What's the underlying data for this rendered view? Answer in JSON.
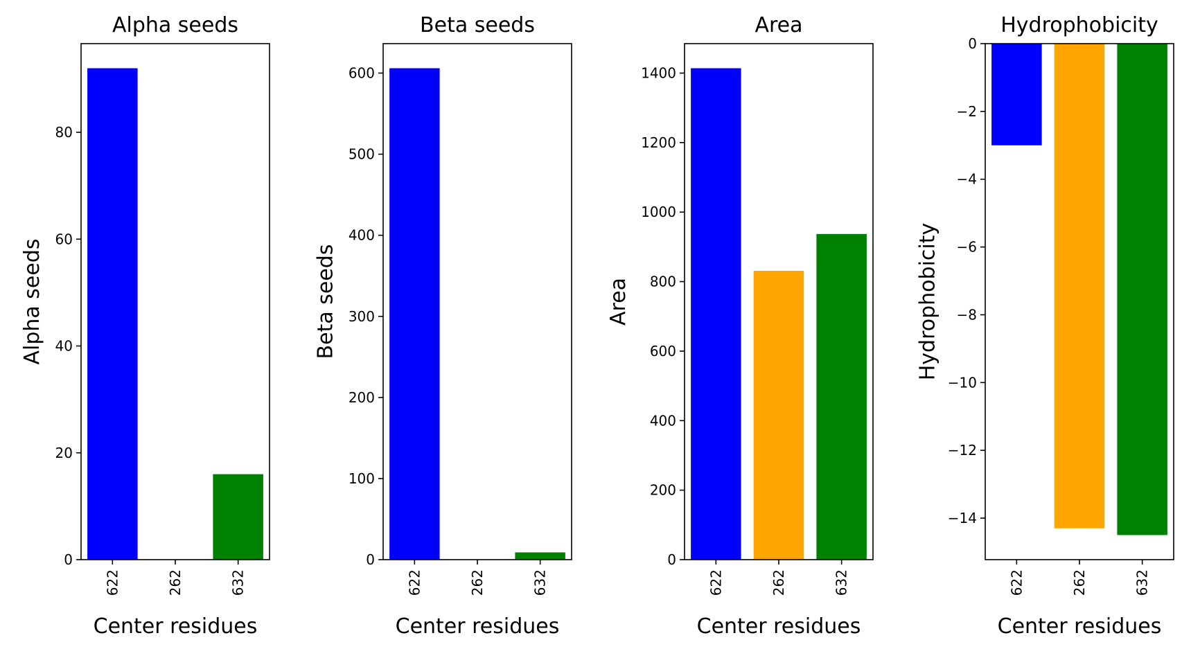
{
  "chart_data": [
    {
      "type": "bar",
      "title": "Alpha seeds",
      "xlabel": "Center residues",
      "ylabel": "Alpha seeds",
      "categories": [
        "622",
        "262",
        "632"
      ],
      "values": [
        92,
        0,
        16
      ],
      "colors": [
        "#0000ff",
        "#ffa500",
        "#008000"
      ],
      "ylim": [
        0,
        96.6
      ],
      "yticks": [
        0,
        20,
        40,
        60,
        80
      ],
      "grid": false
    },
    {
      "type": "bar",
      "title": "Beta seeds",
      "xlabel": "Center residues",
      "ylabel": "Beta seeds",
      "categories": [
        "622",
        "262",
        "632"
      ],
      "values": [
        606,
        0,
        9
      ],
      "colors": [
        "#0000ff",
        "#ffa500",
        "#008000"
      ],
      "ylim": [
        0,
        636.3
      ],
      "yticks": [
        0,
        100,
        200,
        300,
        400,
        500,
        600
      ],
      "grid": false
    },
    {
      "type": "bar",
      "title": "Area",
      "xlabel": "Center residues",
      "ylabel": "Area",
      "categories": [
        "622",
        "262",
        "632"
      ],
      "values": [
        1414,
        831,
        937
      ],
      "colors": [
        "#0000ff",
        "#ffa500",
        "#008000"
      ],
      "ylim": [
        0,
        1484.7
      ],
      "yticks": [
        0,
        200,
        400,
        600,
        800,
        1000,
        1200,
        1400
      ],
      "grid": false
    },
    {
      "type": "bar",
      "title": "Hydrophobicity",
      "xlabel": "Center residues",
      "ylabel": "Hydrophobicity",
      "categories": [
        "622",
        "262",
        "632"
      ],
      "values": [
        -3.0,
        -14.3,
        -14.5
      ],
      "colors": [
        "#0000ff",
        "#ffa500",
        "#008000"
      ],
      "ylim": [
        -15.225,
        0
      ],
      "yticks": [
        0,
        -2,
        -4,
        -6,
        -8,
        -10,
        -12,
        -14
      ],
      "ytick_labels": [
        "0",
        "−2",
        "−4",
        "−6",
        "−8",
        "−10",
        "−12",
        "−14"
      ],
      "grid": false
    }
  ]
}
